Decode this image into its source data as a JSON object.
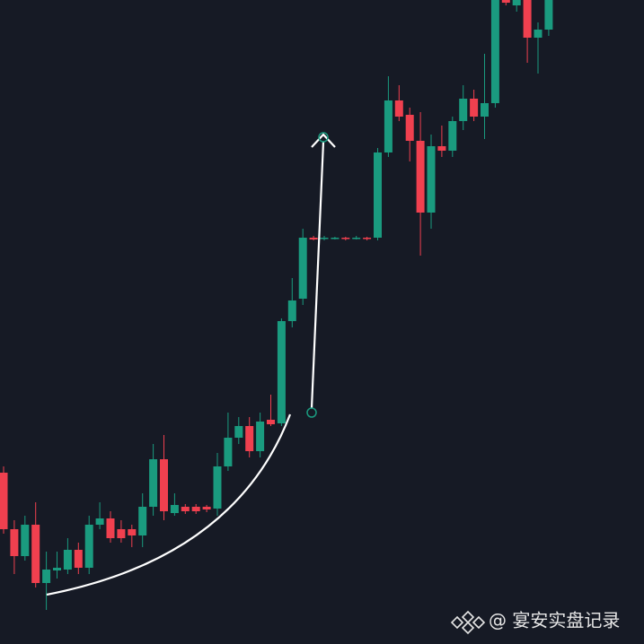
{
  "chart_data": {
    "type": "candlestick",
    "ylim": [
      0,
      718
    ],
    "up_color": "#1a9b7f",
    "down_color": "#f0404f",
    "open": [
      191,
      128,
      98,
      133,
      68,
      82,
      83,
      105,
      85,
      133,
      140,
      128,
      128,
      121,
      153,
      206,
      146,
      153,
      153,
      153,
      151,
      198,
      230,
      243,
      215,
      250,
      246,
      360,
      385,
      453,
      452,
      452,
      453,
      452,
      453,
      453,
      548,
      606,
      590,
      561,
      481,
      555,
      550,
      583,
      608,
      588,
      603,
      718,
      712,
      718,
      676,
      685
    ],
    "high": [
      198,
      138,
      143,
      158,
      103,
      103,
      118,
      113,
      143,
      158,
      148,
      138,
      133,
      168,
      223,
      233,
      168,
      156,
      156,
      155,
      213,
      258,
      253,
      253,
      258,
      278,
      363,
      408,
      463,
      455,
      455,
      454,
      454,
      455,
      454,
      553,
      633,
      623,
      598,
      593,
      568,
      578,
      588,
      623,
      618,
      658,
      718,
      718,
      718,
      718,
      693,
      718
    ],
    "low": [
      123,
      78,
      93,
      63,
      38,
      73,
      78,
      78,
      78,
      128,
      113,
      113,
      108,
      108,
      143,
      138,
      143,
      145,
      145,
      147,
      143,
      193,
      223,
      208,
      208,
      243,
      243,
      353,
      378,
      450,
      450,
      451,
      450,
      451,
      450,
      450,
      543,
      583,
      538,
      433,
      463,
      543,
      543,
      573,
      583,
      563,
      598,
      712,
      705,
      648,
      636,
      678
    ],
    "close": [
      128,
      98,
      133,
      68,
      83,
      85,
      105,
      85,
      133,
      140,
      118,
      118,
      121,
      153,
      206,
      148,
      155,
      148,
      148,
      150,
      198,
      230,
      243,
      215,
      248,
      245,
      360,
      383,
      453,
      451,
      453,
      453,
      452,
      453,
      452,
      548,
      606,
      588,
      561,
      481,
      555,
      550,
      583,
      608,
      588,
      603,
      718,
      715,
      718,
      676,
      685,
      718
    ],
    "watermark": "@ 宴安实盘记录"
  }
}
